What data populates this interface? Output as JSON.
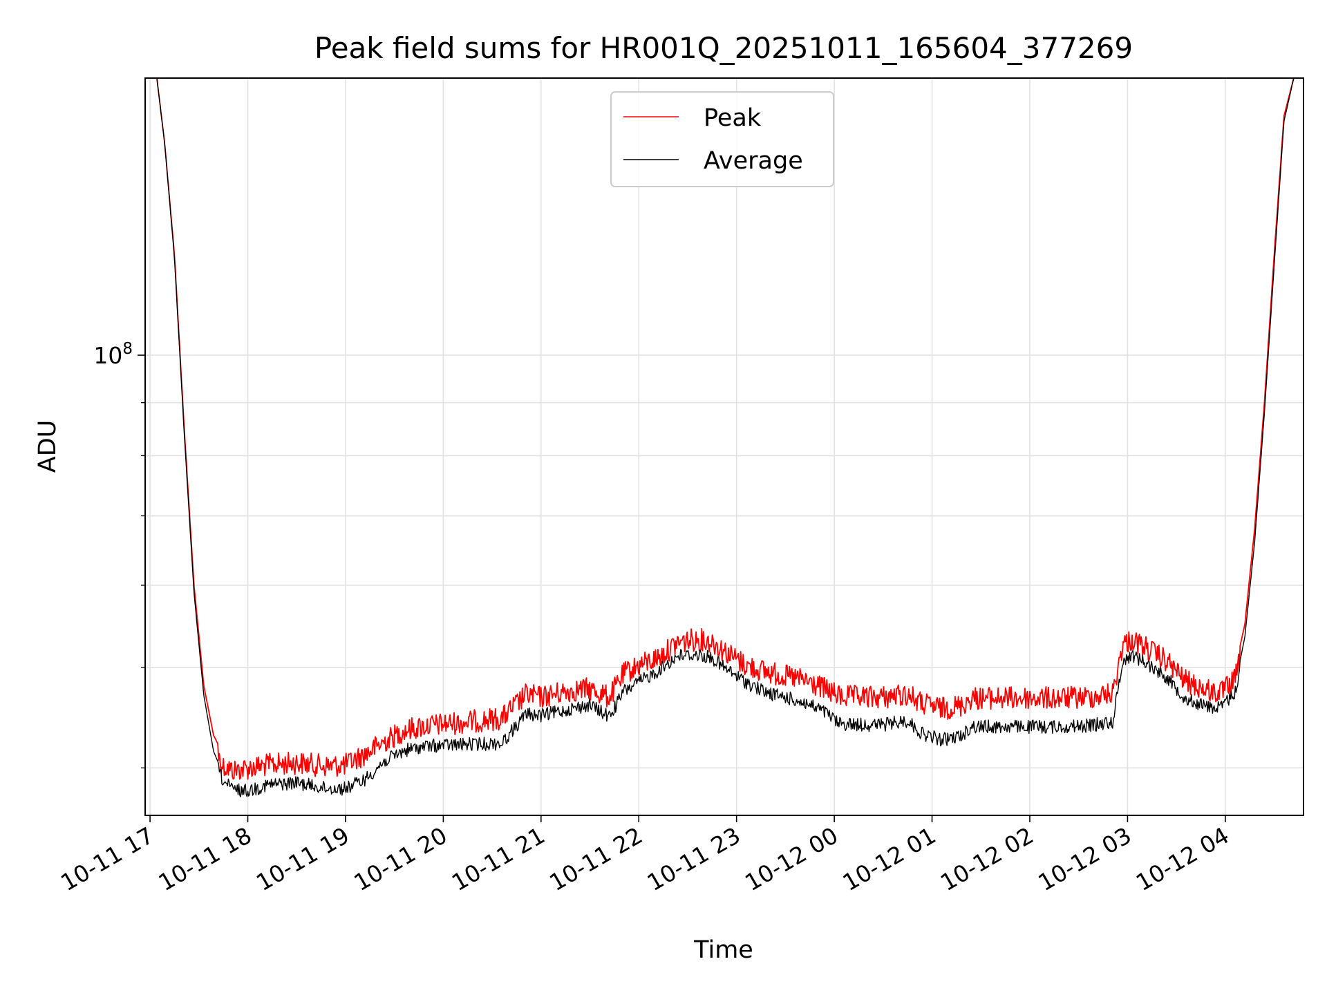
{
  "chart_data": {
    "type": "line",
    "title": "Peak field sums for HR001Q_20251011_165604_377269",
    "xlabel": "Time",
    "ylabel": "ADU",
    "y_scale": "log",
    "ylim": [
      36000000,
      185000000
    ],
    "y_major_tick_labels": [
      {
        "value": 100000000,
        "base": "10",
        "exp": "8"
      }
    ],
    "y_minor_ticks": [
      40000000,
      50000000,
      60000000,
      70000000,
      80000000,
      90000000,
      200000000
    ],
    "x_hours_range": [
      -0.05,
      11.8
    ],
    "x_ticks": [
      {
        "hour": 0,
        "label": "10-11 17"
      },
      {
        "hour": 1,
        "label": "10-11 18"
      },
      {
        "hour": 2,
        "label": "10-11 19"
      },
      {
        "hour": 3,
        "label": "10-11 20"
      },
      {
        "hour": 4,
        "label": "10-11 21"
      },
      {
        "hour": 5,
        "label": "10-11 22"
      },
      {
        "hour": 6,
        "label": "10-11 23"
      },
      {
        "hour": 7,
        "label": "10-12 00"
      },
      {
        "hour": 8,
        "label": "10-12 01"
      },
      {
        "hour": 9,
        "label": "10-12 02"
      },
      {
        "hour": 10,
        "label": "10-12 03"
      },
      {
        "hour": 11,
        "label": "10-12 04"
      }
    ],
    "grid": true,
    "legend": {
      "position": "upper-center"
    },
    "series": [
      {
        "name": "Peak",
        "color": "#ff0000",
        "points": [
          [
            0.07,
            185000000
          ],
          [
            0.15,
            160000000
          ],
          [
            0.25,
            125000000
          ],
          [
            0.35,
            85000000
          ],
          [
            0.45,
            60000000
          ],
          [
            0.55,
            48000000
          ],
          [
            0.65,
            43000000
          ],
          [
            0.75,
            41200000
          ],
          [
            0.85,
            40800000
          ],
          [
            1.0,
            41000000
          ],
          [
            1.2,
            41300000
          ],
          [
            1.5,
            41500000
          ],
          [
            1.8,
            41200000
          ],
          [
            2.0,
            41300000
          ],
          [
            2.2,
            42300000
          ],
          [
            2.4,
            43500000
          ],
          [
            2.6,
            44600000
          ],
          [
            2.8,
            45000000
          ],
          [
            3.0,
            45200000
          ],
          [
            3.3,
            45500000
          ],
          [
            3.6,
            45800000
          ],
          [
            3.85,
            48300000
          ],
          [
            4.0,
            48000000
          ],
          [
            4.3,
            48700000
          ],
          [
            4.5,
            48900000
          ],
          [
            4.7,
            48000000
          ],
          [
            4.85,
            50600000
          ],
          [
            5.0,
            51500000
          ],
          [
            5.2,
            52400000
          ],
          [
            5.4,
            54200000
          ],
          [
            5.6,
            54600000
          ],
          [
            5.75,
            54300000
          ],
          [
            5.9,
            53000000
          ],
          [
            6.1,
            51500000
          ],
          [
            6.3,
            50800000
          ],
          [
            6.5,
            50300000
          ],
          [
            6.7,
            49800000
          ],
          [
            6.9,
            48900000
          ],
          [
            7.05,
            48100000
          ],
          [
            7.3,
            48000000
          ],
          [
            7.5,
            48000000
          ],
          [
            7.75,
            48300000
          ],
          [
            7.9,
            47300000
          ],
          [
            8.1,
            46800000
          ],
          [
            8.3,
            47100000
          ],
          [
            8.4,
            47900000
          ],
          [
            8.6,
            47900000
          ],
          [
            8.8,
            47900000
          ],
          [
            9.0,
            47900000
          ],
          [
            9.3,
            47900000
          ],
          [
            9.6,
            48000000
          ],
          [
            9.85,
            48400000
          ],
          [
            9.95,
            54000000
          ],
          [
            10.05,
            54500000
          ],
          [
            10.2,
            53500000
          ],
          [
            10.4,
            52000000
          ],
          [
            10.6,
            49700000
          ],
          [
            10.8,
            48800000
          ],
          [
            10.95,
            48400000
          ],
          [
            11.1,
            49900000
          ],
          [
            11.2,
            55000000
          ],
          [
            11.3,
            68000000
          ],
          [
            11.4,
            90000000
          ],
          [
            11.5,
            125000000
          ],
          [
            11.6,
            170000000
          ],
          [
            11.7,
            185000000
          ]
        ]
      },
      {
        "name": "Average",
        "color": "#000000",
        "points": [
          [
            0.07,
            185000000
          ],
          [
            0.15,
            160000000
          ],
          [
            0.25,
            124000000
          ],
          [
            0.35,
            84000000
          ],
          [
            0.45,
            59000000
          ],
          [
            0.55,
            47000000
          ],
          [
            0.65,
            41500000
          ],
          [
            0.75,
            39400000
          ],
          [
            0.85,
            38700000
          ],
          [
            1.0,
            38600000
          ],
          [
            1.2,
            39100000
          ],
          [
            1.5,
            39300000
          ],
          [
            1.8,
            38800000
          ],
          [
            2.0,
            38800000
          ],
          [
            2.2,
            39600000
          ],
          [
            2.4,
            41200000
          ],
          [
            2.6,
            42200000
          ],
          [
            2.8,
            42600000
          ],
          [
            3.0,
            42700000
          ],
          [
            3.3,
            42800000
          ],
          [
            3.6,
            42900000
          ],
          [
            3.85,
            45800000
          ],
          [
            4.0,
            45600000
          ],
          [
            4.3,
            46300000
          ],
          [
            4.5,
            46700000
          ],
          [
            4.7,
            45500000
          ],
          [
            4.85,
            48200000
          ],
          [
            5.0,
            49100000
          ],
          [
            5.2,
            50400000
          ],
          [
            5.4,
            52100000
          ],
          [
            5.6,
            52200000
          ],
          [
            5.75,
            51800000
          ],
          [
            5.9,
            50500000
          ],
          [
            6.1,
            49100000
          ],
          [
            6.3,
            48000000
          ],
          [
            6.5,
            47500000
          ],
          [
            6.7,
            46900000
          ],
          [
            6.9,
            46000000
          ],
          [
            7.05,
            44800000
          ],
          [
            7.3,
            44700000
          ],
          [
            7.5,
            44700000
          ],
          [
            7.75,
            45100000
          ],
          [
            7.9,
            43800000
          ],
          [
            8.1,
            43200000
          ],
          [
            8.3,
            43600000
          ],
          [
            8.4,
            44500000
          ],
          [
            8.6,
            44500000
          ],
          [
            8.8,
            44500000
          ],
          [
            9.0,
            44500000
          ],
          [
            9.3,
            44500000
          ],
          [
            9.6,
            44600000
          ],
          [
            9.85,
            45000000
          ],
          [
            9.95,
            51500000
          ],
          [
            10.05,
            52200000
          ],
          [
            10.2,
            51200000
          ],
          [
            10.4,
            49700000
          ],
          [
            10.6,
            47300000
          ],
          [
            10.8,
            46600000
          ],
          [
            10.95,
            46400000
          ],
          [
            11.1,
            48000000
          ],
          [
            11.2,
            53500000
          ],
          [
            11.3,
            66000000
          ],
          [
            11.4,
            88000000
          ],
          [
            11.5,
            122000000
          ],
          [
            11.6,
            168000000
          ],
          [
            11.7,
            185000000
          ]
        ]
      }
    ]
  }
}
